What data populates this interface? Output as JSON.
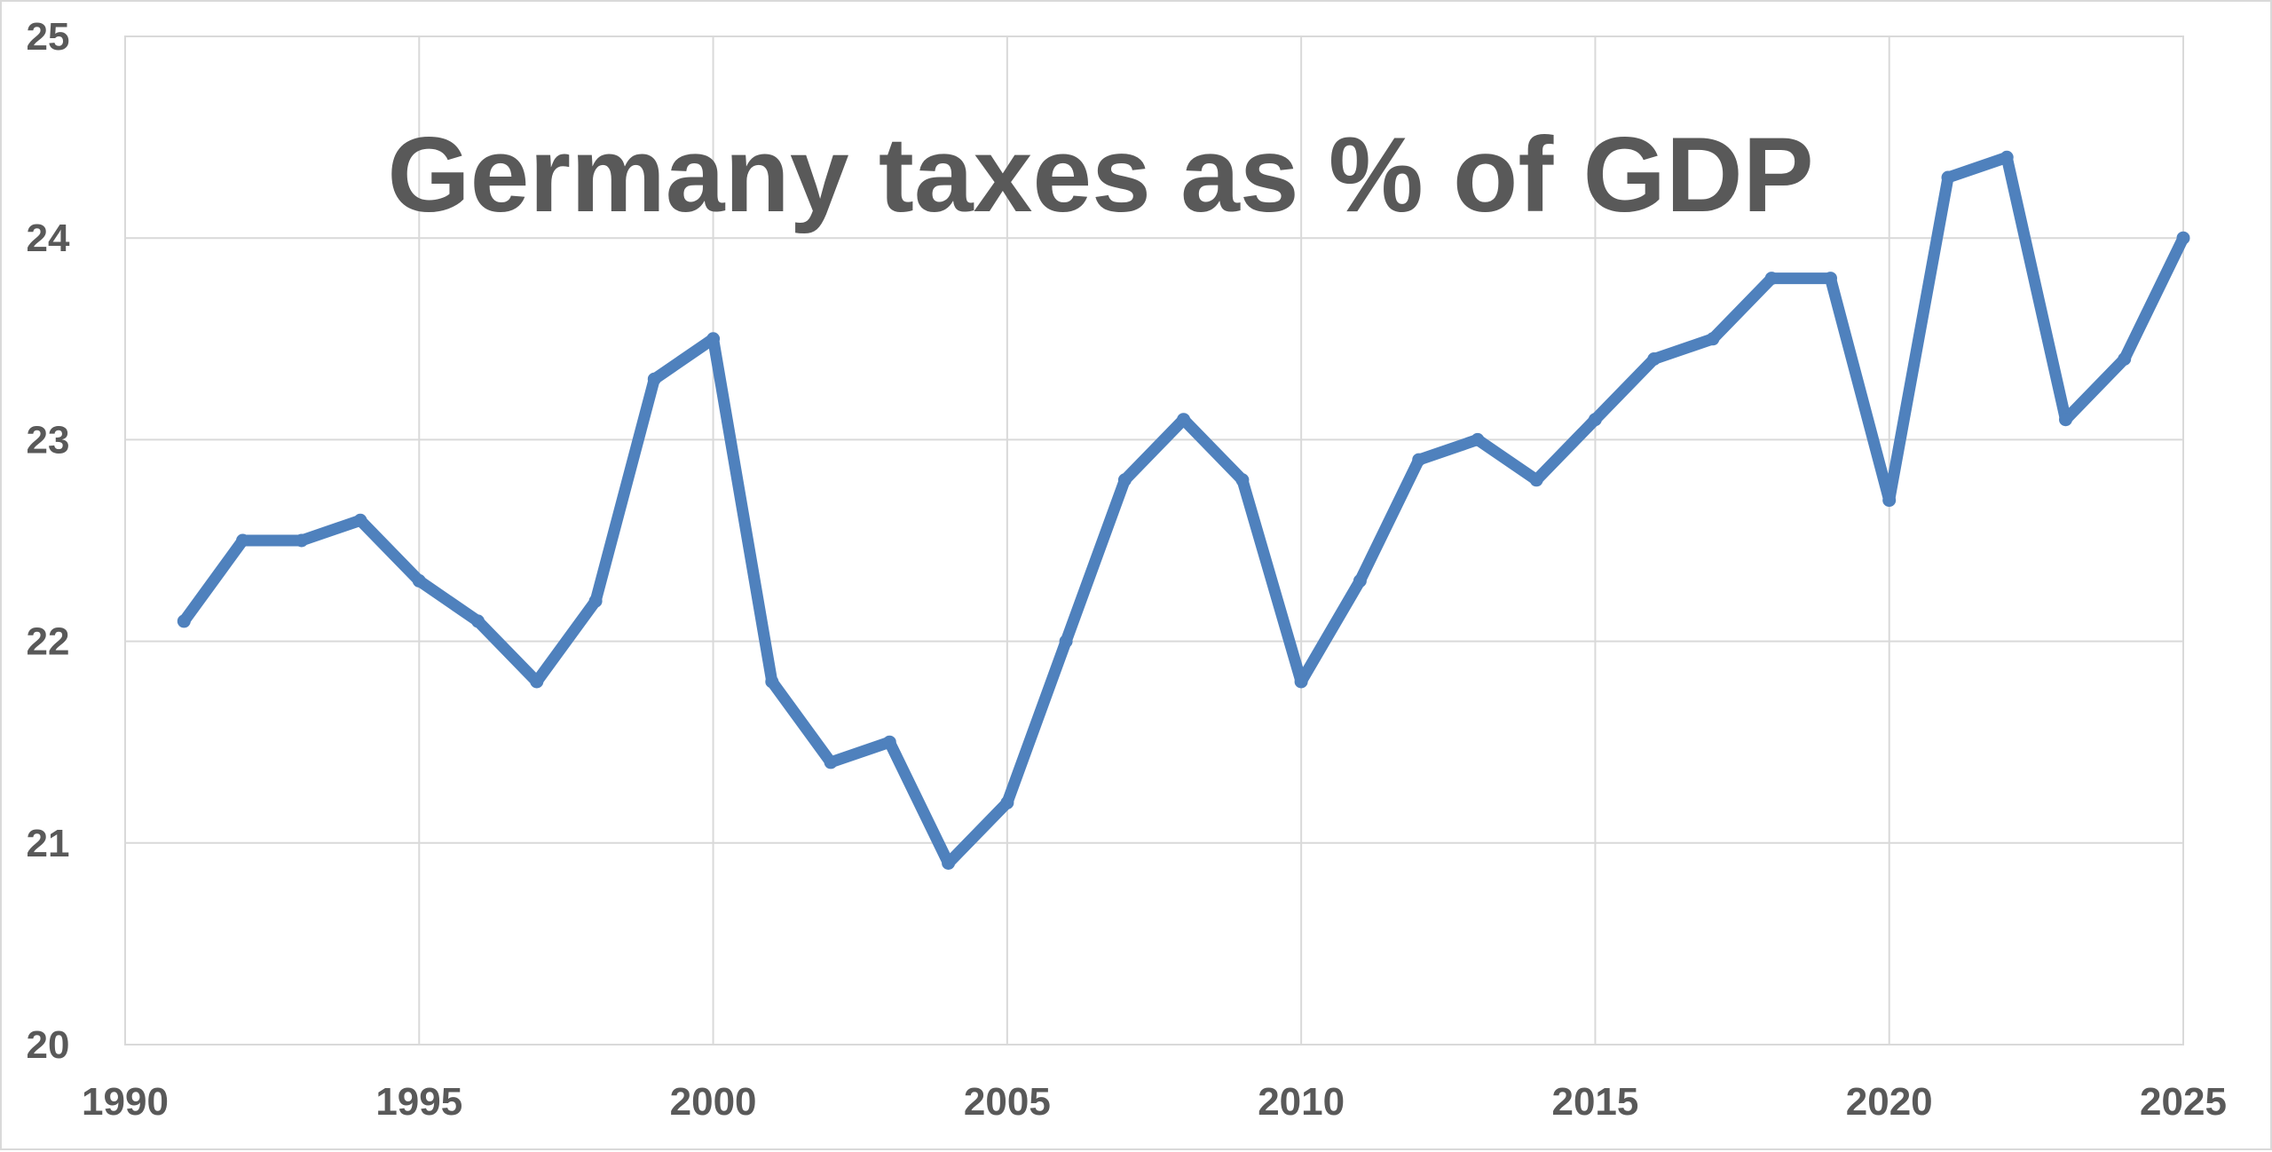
{
  "chart_data": {
    "type": "line",
    "title": "Germany taxes as % of GDP",
    "xlabel": "",
    "ylabel": "",
    "xlim": [
      1990,
      2025
    ],
    "ylim": [
      20,
      25
    ],
    "xticks": [
      1990,
      1995,
      2000,
      2005,
      2010,
      2015,
      2020,
      2025
    ],
    "yticks": [
      20,
      21,
      22,
      23,
      24,
      25
    ],
    "grid": true,
    "legend": "none",
    "series": [
      {
        "color": "#4f81bd",
        "x": [
          1991,
          1992,
          1993,
          1994,
          1995,
          1996,
          1997,
          1998,
          1999,
          2000,
          2001,
          2002,
          2003,
          2004,
          2005,
          2006,
          2007,
          2008,
          2009,
          2010,
          2011,
          2012,
          2013,
          2014,
          2015,
          2016,
          2017,
          2018,
          2019,
          2020,
          2021,
          2022,
          2023,
          2024,
          2025
        ],
        "values": [
          22.1,
          22.5,
          22.5,
          22.6,
          22.3,
          22.1,
          21.8,
          22.2,
          23.3,
          23.5,
          21.8,
          21.4,
          21.5,
          20.9,
          21.2,
          22.0,
          22.8,
          23.1,
          22.8,
          21.8,
          22.3,
          22.9,
          23.0,
          22.8,
          23.1,
          23.4,
          23.5,
          23.8,
          23.8,
          22.7,
          24.3,
          24.4,
          23.1,
          23.4,
          24.0
        ]
      }
    ]
  },
  "colors": {
    "line": "#4f81bd",
    "grid": "#d9d9d9",
    "text": "#595959"
  }
}
